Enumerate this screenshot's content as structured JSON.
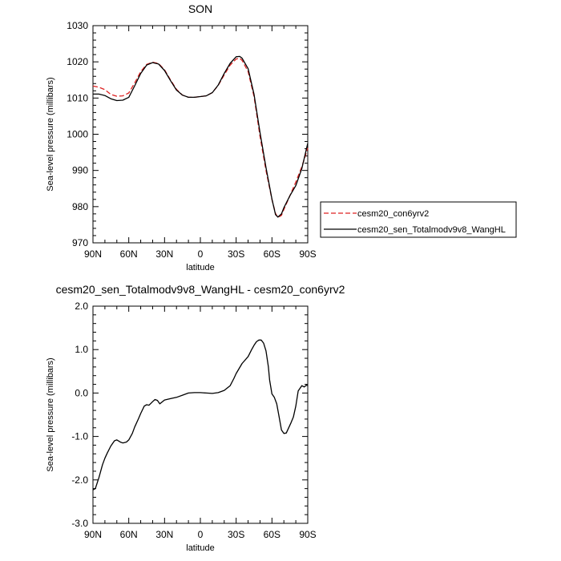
{
  "chart_data": [
    {
      "type": "line",
      "title": "SON",
      "xlabel": "latitude",
      "ylabel": "Sea-level pressure (millibars)",
      "xlim": [
        90,
        -90
      ],
      "ylim": [
        970,
        1030
      ],
      "xticks": [
        90,
        60,
        30,
        0,
        -30,
        -60,
        -90
      ],
      "xtick_labels": [
        "90N",
        "60N",
        "30N",
        "0",
        "30S",
        "60S",
        "90S"
      ],
      "yticks": [
        970,
        980,
        990,
        1000,
        1010,
        1020,
        1030
      ],
      "ytick_labels": [
        "970",
        "980",
        "990",
        "1000",
        "1010",
        "1020",
        "1030"
      ],
      "legend": "right",
      "series": [
        {
          "name": "cesm20_con6yrv2",
          "color": "#dd2020",
          "dash": "dashed",
          "x": [
            90,
            85,
            80,
            75,
            70,
            65,
            60,
            55,
            50,
            45,
            40,
            35,
            30,
            25,
            20,
            15,
            10,
            5,
            0,
            -5,
            -10,
            -15,
            -20,
            -25,
            -30,
            -33,
            -35,
            -40,
            -45,
            -50,
            -55,
            -60,
            -63,
            -65,
            -68,
            -70,
            -75,
            -80,
            -85,
            -90
          ],
          "y": [
            1013.3,
            1013.0,
            1012.3,
            1011.0,
            1010.5,
            1010.6,
            1011.4,
            1014.2,
            1017.3,
            1019.3,
            1019.9,
            1019.5,
            1017.8,
            1015.0,
            1012.4,
            1010.8,
            1010.2,
            1010.2,
            1010.4,
            1010.6,
            1011.5,
            1013.5,
            1016.4,
            1019.1,
            1020.8,
            1021.0,
            1020.4,
            1017.3,
            1010.4,
            999.5,
            990.0,
            982.0,
            978.1,
            977.0,
            977.6,
            979.2,
            983.0,
            986.8,
            991.0,
            996.2
          ]
        },
        {
          "name": "cesm20_sen_Totalmodv9v8_WangHL",
          "color": "#000000",
          "dash": "solid",
          "x": [
            90,
            85,
            80,
            75,
            70,
            65,
            60,
            55,
            50,
            45,
            40,
            35,
            30,
            25,
            20,
            15,
            10,
            5,
            0,
            -5,
            -10,
            -15,
            -20,
            -25,
            -30,
            -33,
            -35,
            -40,
            -45,
            -50,
            -55,
            -60,
            -63,
            -65,
            -68,
            -70,
            -75,
            -80,
            -85,
            -90
          ],
          "y": [
            1011.1,
            1011.1,
            1010.7,
            1009.8,
            1009.3,
            1009.4,
            1010.2,
            1013.4,
            1016.8,
            1019.1,
            1019.8,
            1019.4,
            1017.6,
            1014.8,
            1012.2,
            1010.8,
            1010.2,
            1010.2,
            1010.4,
            1010.6,
            1011.5,
            1013.6,
            1016.8,
            1019.6,
            1021.4,
            1021.5,
            1021.0,
            1018.1,
            1011.0,
            1000.5,
            990.8,
            982.1,
            977.8,
            977.1,
            978.0,
            979.7,
            983.0,
            985.8,
            990.5,
            997.5
          ]
        }
      ]
    },
    {
      "type": "line",
      "title": "cesm20_sen_Totalmodv9v8_WangHL - cesm20_con6yrv2",
      "xlabel": "latitude",
      "ylabel": "Sea-level pressure (millibars)",
      "xlim": [
        90,
        -90
      ],
      "ylim": [
        -3.0,
        2.0
      ],
      "xticks": [
        90,
        60,
        30,
        0,
        -30,
        -60,
        -90
      ],
      "xtick_labels": [
        "90N",
        "60N",
        "30N",
        "0",
        "30S",
        "60S",
        "90S"
      ],
      "yticks": [
        -3.0,
        -2.0,
        -1.0,
        0.0,
        1.0,
        2.0
      ],
      "ytick_labels": [
        "-3.0",
        "-2.0",
        "-1.0",
        "0.0",
        "1.0",
        "2.0"
      ],
      "series": [
        {
          "color": "#000000",
          "dash": "solid",
          "x": [
            90,
            88,
            85,
            82,
            80,
            78,
            75,
            72,
            70,
            67,
            65,
            62,
            60,
            57,
            55,
            52,
            50,
            47,
            45,
            43,
            40,
            38,
            36,
            34,
            30,
            25,
            20,
            15,
            10,
            5,
            0,
            -5,
            -10,
            -15,
            -20,
            -25,
            -28,
            -30,
            -35,
            -40,
            -43,
            -45,
            -47,
            -49,
            -51,
            -53,
            -55,
            -57,
            -58,
            -60,
            -62,
            -64,
            -66,
            -68,
            -70,
            -72,
            -74,
            -76,
            -78,
            -80,
            -82,
            -85,
            -87,
            -89,
            -90
          ],
          "y": [
            -2.23,
            -2.2,
            -1.95,
            -1.65,
            -1.5,
            -1.38,
            -1.22,
            -1.1,
            -1.08,
            -1.13,
            -1.15,
            -1.13,
            -1.08,
            -0.93,
            -0.78,
            -0.6,
            -0.47,
            -0.3,
            -0.27,
            -0.28,
            -0.2,
            -0.15,
            -0.17,
            -0.25,
            -0.16,
            -0.13,
            -0.1,
            -0.05,
            0.0,
            0.01,
            0.01,
            0.0,
            -0.01,
            0.01,
            0.06,
            0.17,
            0.33,
            0.45,
            0.68,
            0.84,
            1.0,
            1.1,
            1.18,
            1.22,
            1.22,
            1.15,
            0.97,
            0.6,
            0.3,
            -0.02,
            -0.1,
            -0.25,
            -0.55,
            -0.85,
            -0.93,
            -0.92,
            -0.8,
            -0.68,
            -0.55,
            -0.3,
            0.05,
            0.17,
            0.14,
            0.18,
            0.17
          ]
        }
      ]
    }
  ]
}
